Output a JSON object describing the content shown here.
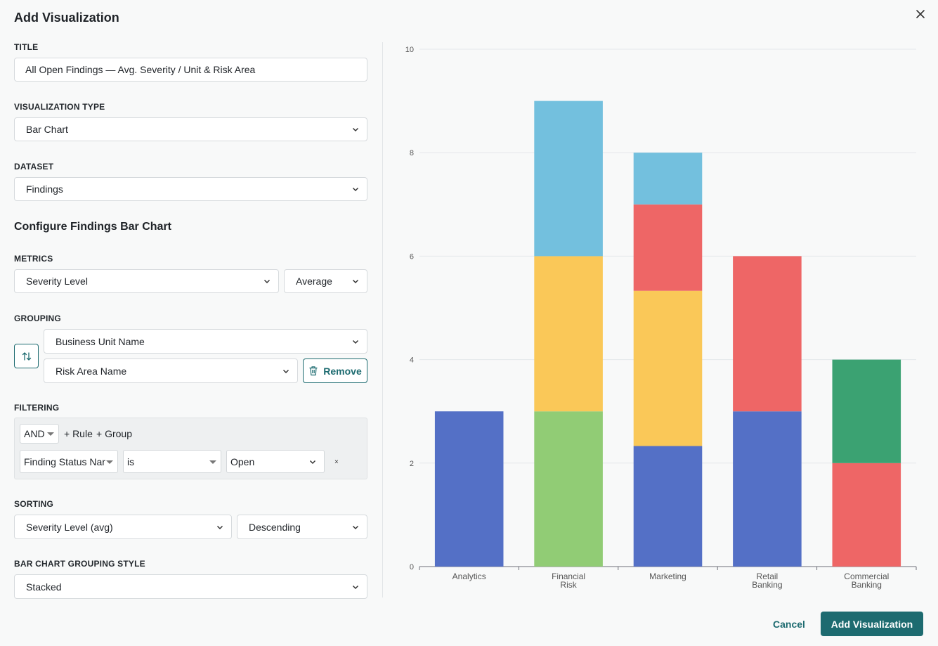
{
  "dialog": {
    "title": "Add Visualization"
  },
  "form": {
    "title_label": "TITLE",
    "title_value": "All Open Findings — Avg. Severity / Unit & Risk Area",
    "viz_type_label": "VISUALIZATION TYPE",
    "viz_type_value": "Bar Chart",
    "dataset_label": "DATASET",
    "dataset_value": "Findings",
    "configure_heading": "Configure Findings Bar Chart",
    "metrics_label": "METRICS",
    "metric_field": "Severity Level",
    "metric_agg": "Average",
    "grouping_label": "GROUPING",
    "group_primary": "Business Unit Name",
    "group_secondary": "Risk Area Name",
    "remove_label": "Remove",
    "filtering_label": "FILTERING",
    "filter": {
      "logic": "AND",
      "add_rule": "+ Rule",
      "add_group": "+ Group",
      "field": "Finding Status Nar",
      "operator": "is",
      "value": "Open",
      "delete": "×"
    },
    "sorting_label": "SORTING",
    "sort_field": "Severity Level (avg)",
    "sort_order": "Descending",
    "grouping_style_label": "BAR CHART GROUPING STYLE",
    "grouping_style_value": "Stacked"
  },
  "footer": {
    "cancel_label": "Cancel",
    "submit_label": "Add Visualization"
  },
  "colors": {
    "accent": "#1d6b70"
  },
  "chart_data": {
    "type": "bar",
    "stacked": true,
    "ylim": [
      0,
      10
    ],
    "yticks": [
      0,
      2,
      4,
      6,
      8,
      10
    ],
    "grid": true,
    "categories": [
      [
        "Analytics"
      ],
      [
        "Financial",
        "Risk"
      ],
      [
        "Marketing"
      ],
      [
        "Retail",
        "Banking"
      ],
      [
        "Commercial",
        "Banking"
      ]
    ],
    "series": [
      {
        "color": "#5470c6",
        "values": [
          3,
          0,
          2.33,
          3,
          0
        ]
      },
      {
        "color": "#91cc75",
        "values": [
          0,
          3,
          0,
          0,
          0
        ]
      },
      {
        "color": "#fac858",
        "values": [
          0,
          3,
          3,
          0,
          0
        ]
      },
      {
        "color": "#ee6666",
        "values": [
          0,
          0,
          1.67,
          3,
          2
        ]
      },
      {
        "color": "#73c0de",
        "values": [
          0,
          3,
          1,
          0,
          0
        ]
      },
      {
        "color": "#3ba272",
        "values": [
          0,
          0,
          0,
          0,
          2
        ]
      }
    ]
  }
}
